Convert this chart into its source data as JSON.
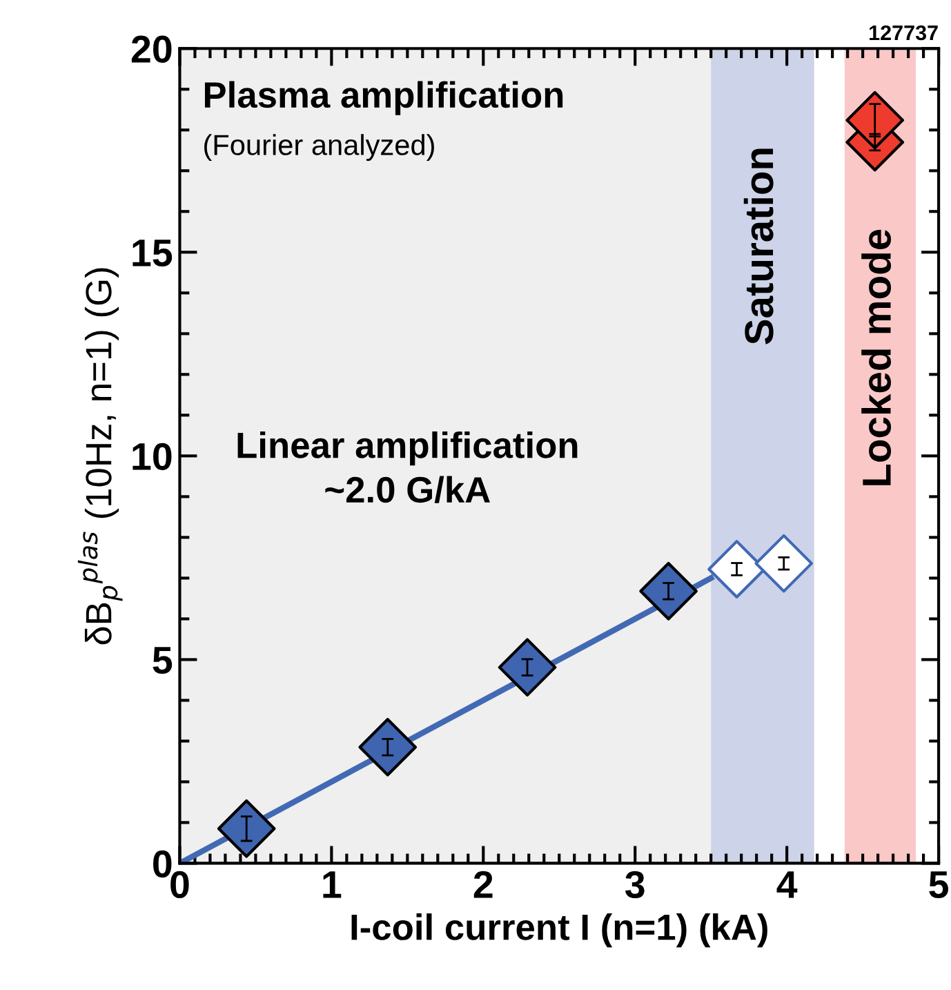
{
  "chart_data": {
    "type": "scatter",
    "xlabel": "I-coil current I (n=1) (kA)",
    "ylabel": "δB$_{p}$$^{plas}$ (10Hz, n=1) (G)",
    "xlim": [
      0,
      5
    ],
    "ylim": [
      0,
      20
    ],
    "xticks": [
      0,
      1,
      2,
      3,
      4,
      5
    ],
    "yticks": [
      0,
      5,
      10,
      15,
      20
    ],
    "grid": false,
    "marker": "diamond",
    "series": [
      {
        "type": "line",
        "marker": "none",
        "color": "#4169b4",
        "x": [
          0,
          3.5
        ],
        "values": [
          0,
          7.0
        ]
      },
      {
        "color": "#3f64b0",
        "x": [
          0.44,
          1.37,
          2.29,
          3.22
        ],
        "values": [
          0.85,
          2.85,
          4.81,
          6.68
        ],
        "errors": [
          0.3,
          0.2,
          0.2,
          0.2
        ]
      },
      {
        "color": "#ffffff",
        "x": [
          3.67,
          3.98
        ],
        "values": [
          7.22,
          7.36
        ],
        "errors": [
          0.15,
          0.15
        ]
      },
      {
        "color": "#ee3b2e",
        "x": [
          4.58,
          4.58
        ],
        "values": [
          17.7,
          18.24
        ],
        "errors": [
          0.2,
          0.4
        ]
      }
    ],
    "bands": [
      {
        "axis": "x",
        "from": 0,
        "to": 3.5,
        "label": null,
        "color": "#efefef"
      },
      {
        "axis": "x",
        "from": 3.5,
        "to": 4.18,
        "label": "Saturation",
        "color": "#cdd3e8"
      },
      {
        "axis": "x",
        "from": 4.38,
        "to": 4.85,
        "label": "Locked mode",
        "color": "#fbc8c8"
      }
    ],
    "annotations": [
      "Plasma amplification",
      "(Fourier analyzed)",
      "Linear amplification\n~2.0 G/kA",
      "127737"
    ]
  }
}
